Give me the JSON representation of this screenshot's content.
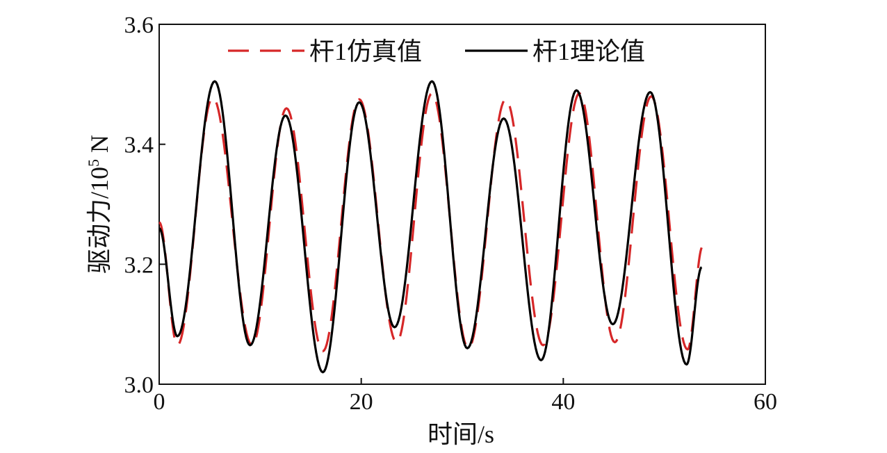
{
  "chart_data": {
    "type": "line",
    "xlabel": "时间/s",
    "ylabel_main": "驱动力/10",
    "ylabel_sup": "5",
    "ylabel_unit": " N",
    "xlim": [
      0,
      60
    ],
    "ylim": [
      3.0,
      3.6
    ],
    "xticks": [
      0,
      20,
      40,
      60
    ],
    "yticks": [
      3.0,
      3.2,
      3.4,
      3.6
    ],
    "xtick_labels": [
      "0",
      "20",
      "40",
      "60"
    ],
    "ytick_labels": [
      "3.0",
      "3.2",
      "3.4",
      "3.6"
    ],
    "grid": false,
    "legend_position": "top",
    "series": [
      {
        "name": "杆1仿真值",
        "color": "#d62728",
        "style": "dashed",
        "x": [
          0,
          1.8,
          5.3,
          9.2,
          12.6,
          16.2,
          19.8,
          23.5,
          27.0,
          30.6,
          34.3,
          38.0,
          41.6,
          45.1,
          48.7,
          52.3,
          53.8
        ],
        "y": [
          3.27,
          3.065,
          3.478,
          3.065,
          3.46,
          3.055,
          3.475,
          3.07,
          3.485,
          3.06,
          3.475,
          3.065,
          3.485,
          3.07,
          3.48,
          3.058,
          3.23
        ]
      },
      {
        "name": "杆1理论值",
        "color": "#000000",
        "style": "solid",
        "x": [
          0,
          1.8,
          5.5,
          9.0,
          12.5,
          16.2,
          19.8,
          23.3,
          27.0,
          30.5,
          34.1,
          37.8,
          41.3,
          44.9,
          48.6,
          52.2,
          53.7
        ],
        "y": [
          3.26,
          3.08,
          3.505,
          3.065,
          3.448,
          3.02,
          3.47,
          3.095,
          3.505,
          3.06,
          3.443,
          3.04,
          3.49,
          3.1,
          3.487,
          3.033,
          3.195
        ]
      }
    ]
  }
}
